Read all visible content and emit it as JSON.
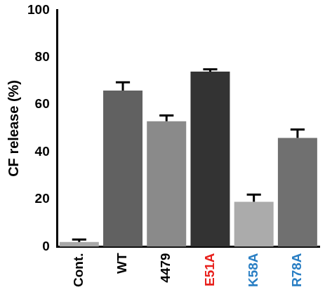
{
  "chart_data": {
    "type": "bar",
    "y_label": "CF release (%)",
    "categories": [
      "Cont.",
      "WT",
      "4479",
      "E51A",
      "K58A",
      "R78A"
    ],
    "values": [
      2,
      66,
      53,
      74,
      19,
      46
    ],
    "errors": [
      1,
      3.5,
      2.5,
      1,
      3,
      3.5
    ],
    "colors": [
      "#a8a8a8",
      "#616161",
      "#8a8a8a",
      "#333333",
      "#ababab",
      "#707070"
    ],
    "ylim": [
      0,
      100
    ],
    "yticks": [
      0,
      20,
      40,
      60,
      80,
      100
    ],
    "grid": false
  }
}
